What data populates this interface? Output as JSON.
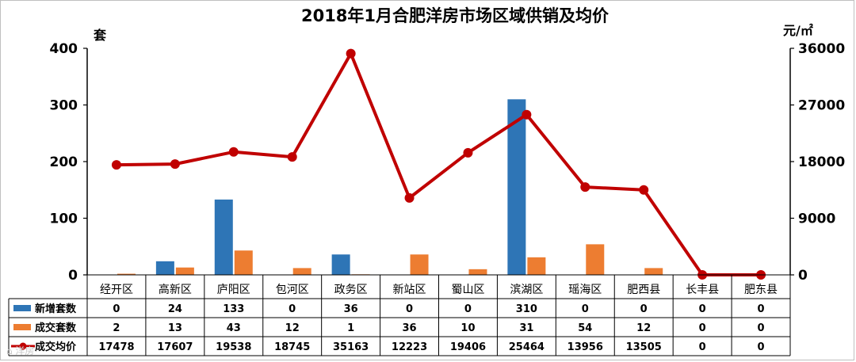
{
  "chart_data": {
    "type": "bar",
    "title": "2018年1月合肥洋房市场区域供销及均价",
    "y_left_unit": "套",
    "y_right_unit": "元/㎡",
    "ylim_left": [
      0,
      400
    ],
    "ylim_right": [
      0,
      36000
    ],
    "yticks_left": [
      "0",
      "100",
      "200",
      "300",
      "400"
    ],
    "yticks_right": [
      "0",
      "9000",
      "18000",
      "27000",
      "36000"
    ],
    "categories": [
      "经开区",
      "高新区",
      "庐阳区",
      "包河区",
      "政务区",
      "新站区",
      "蜀山区",
      "滨湖区",
      "瑶海区",
      "肥西县",
      "长丰县",
      "肥东县"
    ],
    "series": [
      {
        "name": "新增套数",
        "type": "bar",
        "axis": "left",
        "color": "#2e75b6",
        "values": [
          0,
          24,
          133,
          0,
          36,
          0,
          0,
          310,
          0,
          0,
          0,
          0
        ],
        "labels": [
          "0",
          "24",
          "133",
          "0",
          "36",
          "0",
          "0",
          "310",
          "0",
          "0",
          "0",
          "0"
        ]
      },
      {
        "name": "成交套数",
        "type": "bar",
        "axis": "left",
        "color": "#ed7d31",
        "values": [
          2,
          13,
          43,
          12,
          1,
          36,
          10,
          31,
          54,
          12,
          0,
          0
        ],
        "labels": [
          "2",
          "13",
          "43",
          "12",
          "1",
          "36",
          "10",
          "31",
          "54",
          "12",
          "0",
          "0"
        ]
      },
      {
        "name": "成交均价",
        "type": "line",
        "axis": "right",
        "color": "#c00000",
        "values": [
          17478,
          17607,
          19538,
          18745,
          35163,
          12223,
          19406,
          25464,
          13956,
          13505,
          0,
          0
        ],
        "labels": [
          "17478",
          "17607",
          "19538",
          "18745",
          "35163",
          "12223",
          "19406",
          "25464",
          "13956",
          "13505",
          "0",
          "0"
        ]
      }
    ],
    "grid": false,
    "legend_placement": "data-table"
  }
}
